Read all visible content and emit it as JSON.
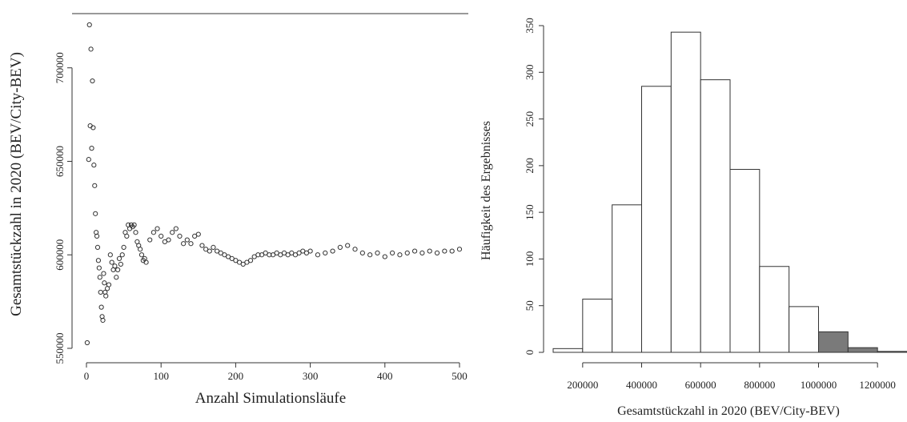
{
  "chart_data": [
    {
      "type": "scatter",
      "xlabel": "Anzahl Simulationsläufe",
      "ylabel": "Gesamtstückzahl in 2020 (BEV/City-BEV)",
      "xlim": [
        0,
        500
      ],
      "ylim": [
        550000,
        725000
      ],
      "xticks": [
        0,
        100,
        200,
        300,
        400,
        500
      ],
      "yticks": [
        550000,
        600000,
        650000,
        700000
      ],
      "frame": "top-right-open-bottom-left-axes",
      "series": [
        {
          "x": [
            1,
            3,
            4,
            5,
            6,
            7,
            8,
            9,
            10,
            11,
            12,
            13,
            14,
            15,
            16,
            17,
            18,
            19,
            20,
            21,
            22,
            23,
            24,
            25,
            26,
            28,
            30,
            32,
            34,
            36,
            38,
            40,
            42,
            44,
            46,
            48,
            50,
            52,
            54,
            56,
            58,
            60,
            62,
            64,
            66,
            68,
            70,
            72,
            74,
            76,
            78,
            80,
            85,
            90,
            95,
            100,
            105,
            110,
            115,
            120,
            125,
            130,
            135,
            140,
            145,
            150,
            155,
            160,
            165,
            170,
            175,
            180,
            185,
            190,
            195,
            200,
            205,
            210,
            215,
            220,
            225,
            230,
            235,
            240,
            245,
            250,
            255,
            260,
            265,
            270,
            275,
            280,
            285,
            290,
            295,
            300,
            310,
            320,
            330,
            340,
            350,
            360,
            370,
            380,
            390,
            400,
            410,
            420,
            430,
            440,
            450,
            460,
            470,
            480,
            490,
            500
          ],
          "y": [
            553000,
            651000,
            723000,
            669000,
            710000,
            657000,
            693000,
            668000,
            648000,
            637000,
            622000,
            612000,
            610000,
            604000,
            597000,
            593000,
            588000,
            580000,
            572000,
            567000,
            565000,
            590000,
            585000,
            580000,
            578000,
            582000,
            584000,
            600000,
            596000,
            592000,
            594000,
            588000,
            592000,
            598000,
            595000,
            600000,
            604000,
            612000,
            610000,
            616000,
            614000,
            616000,
            615000,
            616000,
            612000,
            607000,
            605000,
            603000,
            600000,
            597000,
            598000,
            596000,
            608000,
            612000,
            614000,
            610000,
            607000,
            608000,
            612000,
            614000,
            610000,
            606000,
            608000,
            606000,
            610000,
            611000,
            605000,
            603000,
            602000,
            604000,
            602000,
            601000,
            600000,
            599000,
            598000,
            597000,
            596000,
            595000,
            596000,
            597000,
            599000,
            600000,
            600000,
            601000,
            600000,
            600000,
            601000,
            600000,
            601000,
            600000,
            601000,
            600000,
            601000,
            602000,
            601000,
            602000,
            600000,
            601000,
            602000,
            604000,
            605000,
            603000,
            601000,
            600000,
            601000,
            599000,
            601000,
            600000,
            601000,
            602000,
            601000,
            602000,
            601000,
            602000,
            602000,
            603000
          ]
        }
      ]
    },
    {
      "type": "histogram",
      "xlabel": "Gesamtstückzahl in 2020 (BEV/City-BEV)",
      "ylabel": "Häufigkeit des Ergebnisses",
      "xlim": [
        100000,
        1300000
      ],
      "ylim": [
        0,
        350
      ],
      "xticks": [
        200000,
        400000,
        600000,
        800000,
        1000000,
        1200000
      ],
      "yticks": [
        0,
        50,
        100,
        150,
        200,
        250,
        300,
        350
      ],
      "bins": [
        {
          "from": 100000,
          "to": 200000,
          "count": 4,
          "shaded": false
        },
        {
          "from": 200000,
          "to": 300000,
          "count": 57,
          "shaded": false
        },
        {
          "from": 300000,
          "to": 400000,
          "count": 158,
          "shaded": false
        },
        {
          "from": 400000,
          "to": 500000,
          "count": 285,
          "shaded": false
        },
        {
          "from": 500000,
          "to": 600000,
          "count": 343,
          "shaded": false
        },
        {
          "from": 600000,
          "to": 700000,
          "count": 292,
          "shaded": false
        },
        {
          "from": 700000,
          "to": 800000,
          "count": 196,
          "shaded": false
        },
        {
          "from": 800000,
          "to": 900000,
          "count": 92,
          "shaded": false
        },
        {
          "from": 900000,
          "to": 1000000,
          "count": 49,
          "shaded": false
        },
        {
          "from": 1000000,
          "to": 1100000,
          "count": 22,
          "shaded": true
        },
        {
          "from": 1100000,
          "to": 1200000,
          "count": 5,
          "shaded": true
        },
        {
          "from": 1200000,
          "to": 1300000,
          "count": 1,
          "shaded": true
        }
      ],
      "colors": {
        "bar": "#ffffff",
        "shaded": "#7a7a7a",
        "stroke": "#333333"
      }
    }
  ]
}
